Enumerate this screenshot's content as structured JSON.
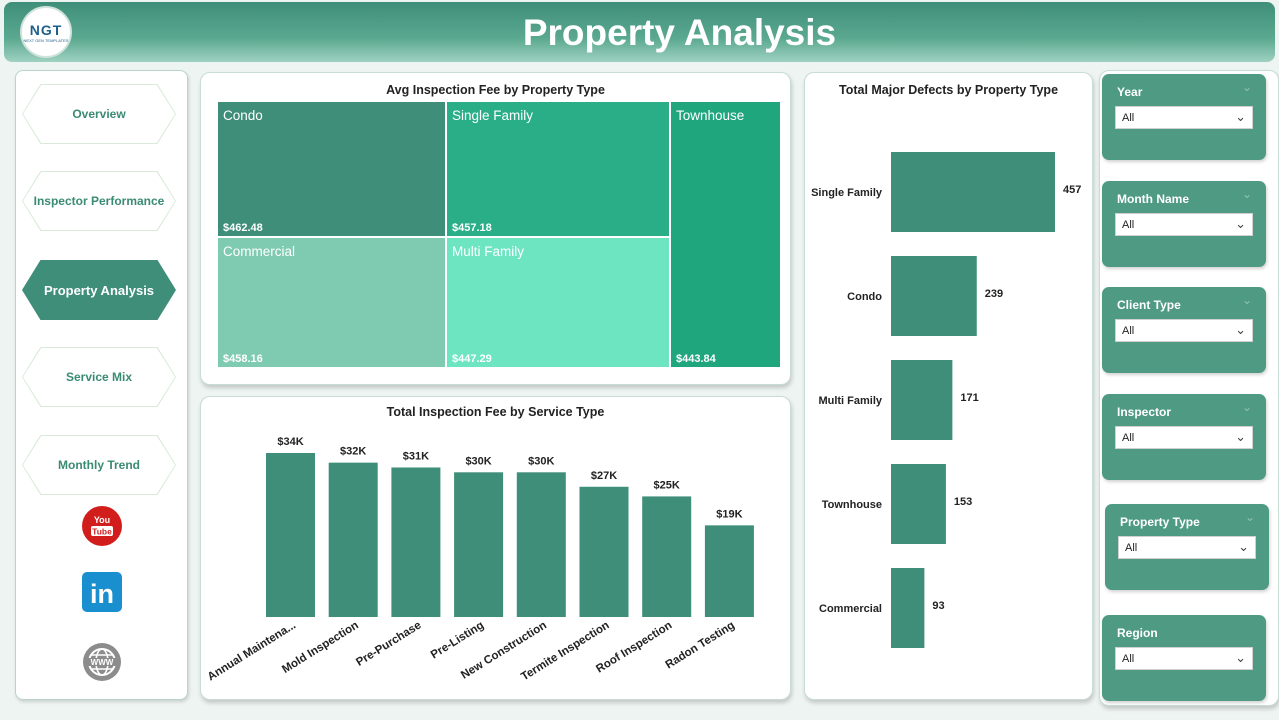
{
  "header": {
    "title": "Property Analysis",
    "logo_text": "NGT",
    "logo_subtext": "NEXT GEN TEMPLATES"
  },
  "nav": {
    "items": [
      {
        "label": "Overview"
      },
      {
        "label": "Inspector Performance"
      },
      {
        "label": "Property Analysis",
        "active": true
      },
      {
        "label": "Service Mix"
      },
      {
        "label": "Monthly Trend"
      }
    ],
    "social": [
      {
        "icon": "youtube-icon",
        "text": "You\nTube",
        "color": "#d21d1d"
      },
      {
        "icon": "linkedin-icon",
        "text": "in",
        "color": "#1a8fd0"
      },
      {
        "icon": "globe-icon",
        "color": "#8c8c8c"
      }
    ]
  },
  "treemap": {
    "title": "Avg Inspection Fee by Property Type",
    "tiles": [
      {
        "name": "Condo",
        "value": "$462.48",
        "color": "#3f8e79"
      },
      {
        "name": "Single Family",
        "value": "$457.18",
        "color": "#2aae88"
      },
      {
        "name": "Commercial",
        "value": "$458.16",
        "color": "#7fcbb2"
      },
      {
        "name": "Multi Family",
        "value": "$447.29",
        "color": "#6de5c0"
      },
      {
        "name": "Townhouse",
        "value": "$443.84",
        "color": "#1fa67d"
      }
    ]
  },
  "chart_data": [
    {
      "type": "bar",
      "title": "Total Inspection Fee by Service Type",
      "categories": [
        "Annual Maintena...",
        "Mold Inspection",
        "Pre-Purchase",
        "Pre-Listing",
        "New Construction",
        "Termite Inspection",
        "Roof Inspection",
        "Radon Testing"
      ],
      "values": [
        34,
        32,
        31,
        30,
        30,
        27,
        25,
        19
      ],
      "data_labels": [
        "$34K",
        "$32K",
        "$31K",
        "$30K",
        "$30K",
        "$27K",
        "$25K",
        "$19K"
      ],
      "color": "#3f8e79"
    },
    {
      "type": "bar",
      "orientation": "horizontal",
      "title": "Total Major Defects by Property Type",
      "categories": [
        "Single Family",
        "Condo",
        "Multi Family",
        "Townhouse",
        "Commercial"
      ],
      "values": [
        457,
        239,
        171,
        153,
        93
      ],
      "color": "#3f8e79"
    }
  ],
  "filters": [
    {
      "label": "Year",
      "value": "All"
    },
    {
      "label": "Month Name",
      "value": "All"
    },
    {
      "label": "Client Type",
      "value": "All"
    },
    {
      "label": "Inspector",
      "value": "All"
    },
    {
      "label": "Property Type",
      "value": "All"
    },
    {
      "label": "Region",
      "value": "All"
    }
  ]
}
